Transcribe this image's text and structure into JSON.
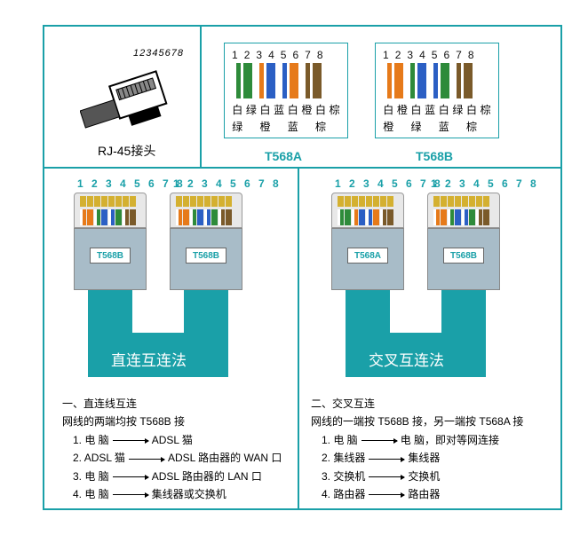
{
  "rj45": {
    "numbers": "12345678",
    "label": "RJ-45接头"
  },
  "colors": {
    "white": "#ffffff",
    "green": "#2e8b3a",
    "orange": "#e67a1a",
    "blue": "#2b5fc4",
    "brown": "#7a5a2a",
    "gold": "#d4b030",
    "plugBody": "#a8bcc8",
    "teal": "#1aa0a8",
    "head": "#e8e8e8"
  },
  "t568a": {
    "pins": [
      "1",
      "2",
      "3",
      "4",
      "5",
      "6",
      "7",
      "8"
    ],
    "stripes": [
      {
        "c": "#2e8b3a",
        "half": true
      },
      {
        "c": "#2e8b3a",
        "half": false
      },
      {
        "c": "#e67a1a",
        "half": true
      },
      {
        "c": "#2b5fc4",
        "half": false
      },
      {
        "c": "#2b5fc4",
        "half": true
      },
      {
        "c": "#e67a1a",
        "half": false
      },
      {
        "c": "#7a5a2a",
        "half": true
      },
      {
        "c": "#7a5a2a",
        "half": false
      }
    ],
    "row1": [
      "白",
      "绿",
      "白",
      "蓝",
      "白",
      "橙",
      "白",
      "棕"
    ],
    "row2": [
      "绿",
      "",
      "橙",
      "",
      "蓝",
      "",
      "棕",
      ""
    ],
    "title": "T568A"
  },
  "t568b": {
    "pins": [
      "1",
      "2",
      "3",
      "4",
      "5",
      "6",
      "7",
      "8"
    ],
    "stripes": [
      {
        "c": "#e67a1a",
        "half": true
      },
      {
        "c": "#e67a1a",
        "half": false
      },
      {
        "c": "#2e8b3a",
        "half": true
      },
      {
        "c": "#2b5fc4",
        "half": false
      },
      {
        "c": "#2b5fc4",
        "half": true
      },
      {
        "c": "#2e8b3a",
        "half": false
      },
      {
        "c": "#7a5a2a",
        "half": true
      },
      {
        "c": "#7a5a2a",
        "half": false
      }
    ],
    "row1": [
      "白",
      "橙",
      "白",
      "蓝",
      "白",
      "绿",
      "白",
      "棕"
    ],
    "row2": [
      "橙",
      "",
      "绿",
      "",
      "蓝",
      "",
      "棕",
      ""
    ],
    "title": "T568B"
  },
  "left": {
    "conn1": {
      "nums": "1 2 3 4 5 6 7 8",
      "tag": "T568B",
      "wires": "t568b"
    },
    "conn2": {
      "nums": "1 2 3 4 5 6 7 8",
      "tag": "T568B",
      "wires": "t568b"
    },
    "method": "直连互连法",
    "heading": "一、直连线互连",
    "sub": "网线的两端均按 T568B 接",
    "items": [
      {
        "l": "电  脑",
        "r": "ADSL 猫"
      },
      {
        "l": "ADSL 猫",
        "r": "ADSL 路由器的 WAN 口"
      },
      {
        "l": "电  脑",
        "r": "ADSL 路由器的 LAN 口"
      },
      {
        "l": "电  脑",
        "r": "集线器或交换机"
      }
    ]
  },
  "right": {
    "conn1": {
      "nums": "1 2 3 4 5 6 7 8",
      "tag": "T568A",
      "wires": "t568a"
    },
    "conn2": {
      "nums": "1 2 3 4 5 6 7 8",
      "tag": "T568B",
      "wires": "t568b"
    },
    "method": "交叉互连法",
    "heading": "二、交叉互连",
    "sub": "网线的一端按 T568B 接，另一端按 T568A 接",
    "items": [
      {
        "l": "电  脑",
        "r": "电  脑，即对等网连接"
      },
      {
        "l": "集线器",
        "r": "集线器"
      },
      {
        "l": "交换机",
        "r": "交换机"
      },
      {
        "l": "路由器",
        "r": "路由器"
      }
    ]
  }
}
